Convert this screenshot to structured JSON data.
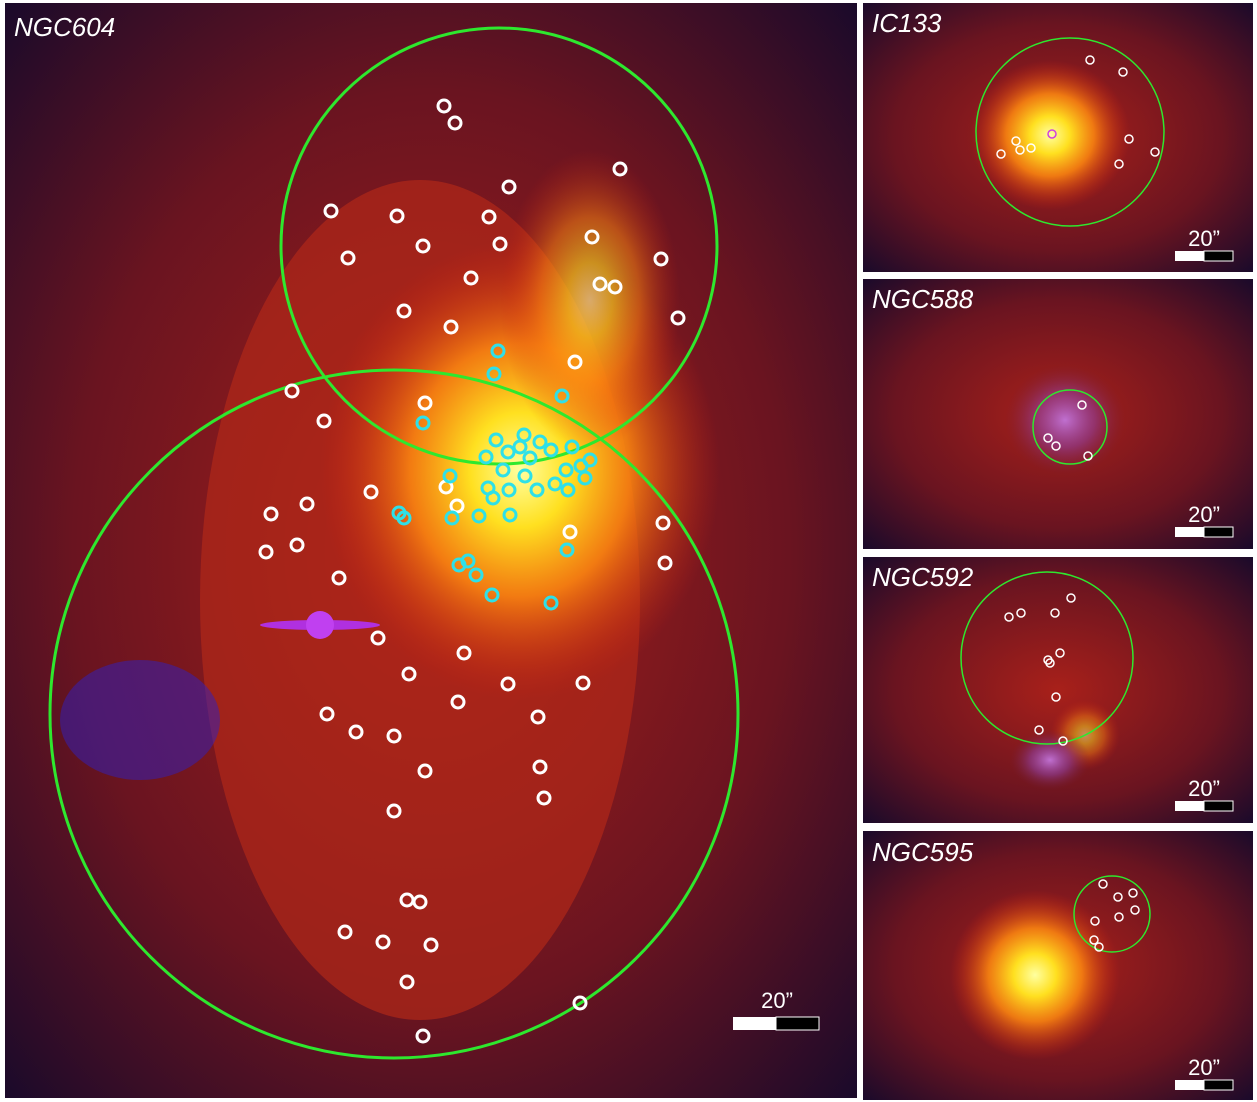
{
  "panels": [
    {
      "label": "NGC604",
      "scale_bar": "20”"
    },
    {
      "label": "IC133",
      "scale_bar": "20”"
    },
    {
      "label": "NGC588",
      "scale_bar": "20”"
    },
    {
      "label": "NGC592",
      "scale_bar": "20”"
    },
    {
      "label": "NGC595",
      "scale_bar": "20”"
    }
  ]
}
